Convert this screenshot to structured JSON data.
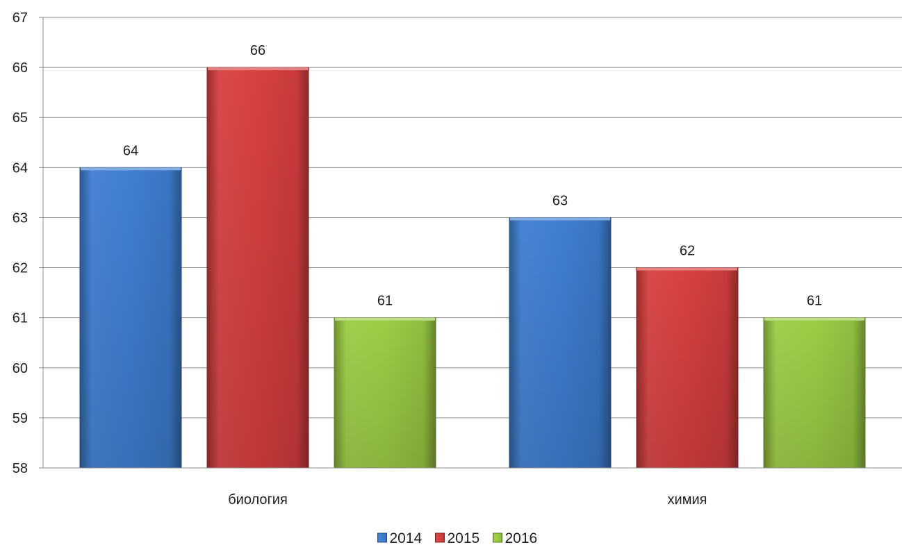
{
  "chart_data": {
    "type": "bar",
    "title": "",
    "xlabel": "",
    "ylabel": "",
    "categories": [
      "биология",
      "химия"
    ],
    "series": [
      {
        "name": "2014",
        "values": [
          64,
          63
        ],
        "color": "#3f7fd2"
      },
      {
        "name": "2015",
        "values": [
          66,
          62
        ],
        "color": "#d8403f"
      },
      {
        "name": "2016",
        "values": [
          61,
          61
        ],
        "color": "#9ccc44"
      }
    ],
    "ylim": [
      58,
      67
    ],
    "yticks": [
      "58",
      "59",
      "60",
      "61",
      "62",
      "63",
      "64",
      "65",
      "66",
      "67"
    ],
    "grid": true,
    "legend_position": "bottom",
    "data_labels": true
  }
}
